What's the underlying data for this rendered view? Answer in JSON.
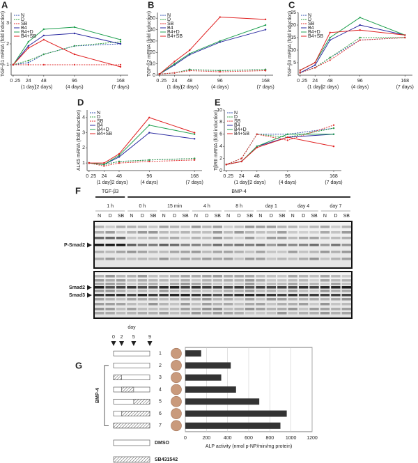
{
  "chart_data": [
    {
      "panel": "A",
      "type": "line",
      "ylabel": "TGF-β1 mRNA (fold induction)",
      "x": [
        0,
        0.25,
        24,
        48,
        96,
        168
      ],
      "xlim": [
        -3,
        180
      ],
      "xticks": [
        0,
        {
          "value": 0.25,
          "label": ".25"
        },
        24,
        48,
        96,
        168
      ],
      "xtick_notes": [
        null,
        null,
        "(1 day)",
        "(2 days)",
        "(4 days)",
        "(7 days)"
      ],
      "ylim": [
        0.5,
        3.5
      ],
      "yticks": [
        1,
        2,
        3
      ],
      "series": [
        {
          "name": "N",
          "color": "#3050b0",
          "dashed": true,
          "values": [
            1,
            1,
            1.1,
            1.5,
            1.9,
            2.0
          ]
        },
        {
          "name": "D",
          "color": "#30a040",
          "dashed": true,
          "values": [
            1,
            1,
            1.2,
            1.5,
            1.9,
            2.1
          ]
        },
        {
          "name": "SB",
          "color": "#e03030",
          "dashed": true,
          "values": [
            1,
            1,
            1.0,
            1.0,
            1.0,
            1.0
          ]
        },
        {
          "name": "B4",
          "color": "#2a2aa0",
          "dashed": false,
          "values": [
            1,
            1,
            1.9,
            2.4,
            2.5,
            2.0
          ]
        },
        {
          "name": "B4+D",
          "color": "#20a050",
          "dashed": false,
          "values": [
            1,
            1,
            2.1,
            2.7,
            2.8,
            2.2
          ]
        },
        {
          "name": "B4+SB",
          "color": "#e02020",
          "dashed": false,
          "values": [
            1,
            1,
            1.8,
            2.2,
            1.5,
            0.9
          ]
        }
      ]
    },
    {
      "panel": "B",
      "type": "line",
      "ylabel": "TGF-β2 mRNA (fold induction)",
      "x": [
        0,
        0.25,
        24,
        48,
        96,
        168
      ],
      "xlim": [
        -3,
        180
      ],
      "xticks": [
        0,
        {
          "value": 0.25,
          "label": ".25"
        },
        24,
        48,
        96,
        168
      ],
      "xtick_notes": [
        null,
        null,
        "(1 day)",
        "(2 days)",
        "(4 days)",
        "(7 days)"
      ],
      "ylim": [
        0,
        55
      ],
      "yticks": [
        0,
        10,
        20,
        30,
        40,
        50
      ],
      "series": [
        {
          "name": "N",
          "color": "#3050b0",
          "dashed": true,
          "values": [
            1,
            1,
            2,
            5,
            4,
            5
          ]
        },
        {
          "name": "D",
          "color": "#30a040",
          "dashed": true,
          "values": [
            1,
            1,
            2,
            5,
            4,
            5
          ]
        },
        {
          "name": "SB",
          "color": "#e03030",
          "dashed": true,
          "values": [
            1,
            1,
            2,
            4,
            3,
            4
          ]
        },
        {
          "name": "B4",
          "color": "#2a2aa0",
          "dashed": false,
          "values": [
            1,
            1,
            9,
            18,
            29,
            40
          ]
        },
        {
          "name": "B4+D",
          "color": "#20a050",
          "dashed": false,
          "values": [
            1,
            1,
            10,
            19,
            30,
            44
          ]
        },
        {
          "name": "B4+SB",
          "color": "#e02020",
          "dashed": false,
          "values": [
            1,
            1,
            12,
            22,
            51,
            49
          ]
        }
      ]
    },
    {
      "panel": "C",
      "type": "line",
      "ylabel": "TGF-β3 mRNA (fold induction)",
      "x": [
        0,
        0.25,
        24,
        48,
        96,
        168
      ],
      "xlim": [
        -3,
        180
      ],
      "xticks": [
        0,
        {
          "value": 0.25,
          "label": ".25"
        },
        24,
        48,
        96,
        168
      ],
      "xtick_notes": [
        null,
        null,
        "(1 day)",
        "(2 days)",
        "(4 days)",
        "(7 days)"
      ],
      "ylim": [
        0,
        25
      ],
      "yticks": [
        5,
        10,
        15,
        20,
        25
      ],
      "series": [
        {
          "name": "N",
          "color": "#3050b0",
          "dashed": true,
          "values": [
            1,
            1,
            3,
            7,
            14,
            15
          ]
        },
        {
          "name": "D",
          "color": "#30a040",
          "dashed": true,
          "values": [
            1,
            1,
            3,
            7,
            15,
            15
          ]
        },
        {
          "name": "SB",
          "color": "#e03030",
          "dashed": true,
          "values": [
            1,
            1,
            3,
            6,
            14,
            15
          ]
        },
        {
          "name": "B4",
          "color": "#2a2aa0",
          "dashed": false,
          "values": [
            1,
            1,
            4,
            14,
            20,
            16
          ]
        },
        {
          "name": "B4+D",
          "color": "#20a050",
          "dashed": false,
          "values": [
            1,
            2,
            5,
            15,
            23,
            16
          ]
        },
        {
          "name": "B4+SB",
          "color": "#e02020",
          "dashed": false,
          "values": [
            1,
            2,
            5,
            17,
            18,
            16
          ]
        }
      ]
    },
    {
      "panel": "D",
      "type": "line",
      "ylabel": "ALK5 mRNA (fold induction)",
      "x": [
        0,
        0.25,
        24,
        48,
        96,
        168
      ],
      "xlim": [
        -3,
        180
      ],
      "xticks": [
        0,
        {
          "value": 0.25,
          "label": ".25"
        },
        24,
        48,
        96,
        168
      ],
      "xtick_notes": [
        null,
        null,
        "(1 day)",
        "(2 days)",
        "(4 days)",
        "(7 days)"
      ],
      "ylim": [
        0.5,
        4.5
      ],
      "yticks": [
        1,
        2,
        3,
        4
      ],
      "series": [
        {
          "name": "N",
          "color": "#3050b0",
          "dashed": true,
          "values": [
            1,
            1,
            0.9,
            1.1,
            1.2,
            1.3
          ]
        },
        {
          "name": "D",
          "color": "#30a040",
          "dashed": true,
          "values": [
            1,
            1,
            0.9,
            1.1,
            1.2,
            1.3
          ]
        },
        {
          "name": "SB",
          "color": "#e03030",
          "dashed": true,
          "values": [
            1,
            1,
            0.8,
            1.0,
            1.1,
            1.2
          ]
        },
        {
          "name": "B4",
          "color": "#2a2aa0",
          "dashed": false,
          "values": [
            1,
            1,
            0.9,
            1.4,
            3.0,
            2.6
          ]
        },
        {
          "name": "B4+D",
          "color": "#20a050",
          "dashed": false,
          "values": [
            1,
            1,
            0.9,
            1.5,
            3.5,
            2.9
          ]
        },
        {
          "name": "B4+SB",
          "color": "#e02020",
          "dashed": false,
          "values": [
            1,
            1,
            1.0,
            1.6,
            4.0,
            3.0
          ]
        }
      ]
    },
    {
      "panel": "E",
      "type": "line",
      "ylabel": "TβRII mRNA (fold induction)",
      "x": [
        0,
        0.25,
        24,
        48,
        96,
        168
      ],
      "xlim": [
        -3,
        180
      ],
      "xticks": [
        0,
        {
          "value": 0.25,
          "label": ".25"
        },
        24,
        48,
        96,
        168
      ],
      "xtick_notes": [
        null,
        null,
        "(1 day)",
        "(2 days)",
        "(4 days)",
        "(7 days)"
      ],
      "ylim": [
        0,
        10
      ],
      "yticks": [
        0,
        2,
        4,
        6,
        8,
        10
      ],
      "series": [
        {
          "name": "N",
          "color": "#3050b0",
          "dashed": true,
          "values": [
            1,
            1,
            2,
            6,
            6,
            7
          ]
        },
        {
          "name": "D",
          "color": "#30a040",
          "dashed": true,
          "values": [
            1,
            1,
            2,
            6,
            5.5,
            7
          ]
        },
        {
          "name": "SB",
          "color": "#e03030",
          "dashed": true,
          "values": [
            1,
            1,
            2,
            6,
            5,
            7.5
          ]
        },
        {
          "name": "B4",
          "color": "#2a2aa0",
          "dashed": false,
          "values": [
            1,
            1,
            1.5,
            4,
            5.5,
            6
          ]
        },
        {
          "name": "B4+D",
          "color": "#20a050",
          "dashed": false,
          "values": [
            1,
            1,
            1.5,
            4,
            6,
            6
          ]
        },
        {
          "name": "B4+SB",
          "color": "#e02020",
          "dashed": false,
          "values": [
            1,
            1,
            1.5,
            3.8,
            5.5,
            4
          ]
        }
      ]
    },
    {
      "panel": "G",
      "type": "hbar",
      "xlabel": "ALP activity (nmol p-NP/min/mg protein)",
      "categories": [
        "1",
        "2",
        "3",
        "4",
        "5",
        "6",
        "7"
      ],
      "values": [
        150,
        430,
        340,
        480,
        700,
        960,
        900
      ],
      "color": "#333333",
      "xlim": [
        0,
        1200
      ],
      "xticks": [
        0,
        200,
        400,
        600,
        800,
        1000,
        1200
      ],
      "grid": true,
      "schedule": {
        "title": "day",
        "days": [
          0,
          2,
          5,
          9
        ],
        "sb_days": [
          null,
          null,
          [
            0,
            2
          ],
          [
            2,
            5
          ],
          [
            5,
            9
          ],
          [
            2,
            9
          ],
          [
            0,
            9
          ]
        ],
        "group_label": "BMP-4",
        "legend": [
          "DMSO",
          "SB431542"
        ]
      }
    }
  ],
  "blot": {
    "panel": "F",
    "groups": [
      {
        "label": "TGF-β3",
        "times": [
          "1 h"
        ]
      },
      {
        "label": "BMP-4",
        "times": [
          "0 h",
          "15 min",
          "4 h",
          "8 h",
          "day 1",
          "day 4",
          "day 7"
        ]
      }
    ],
    "lanes": [
      "N",
      "D",
      "SB"
    ],
    "bands": [
      "P-Smad2",
      "Smad2",
      "Smad3"
    ]
  }
}
